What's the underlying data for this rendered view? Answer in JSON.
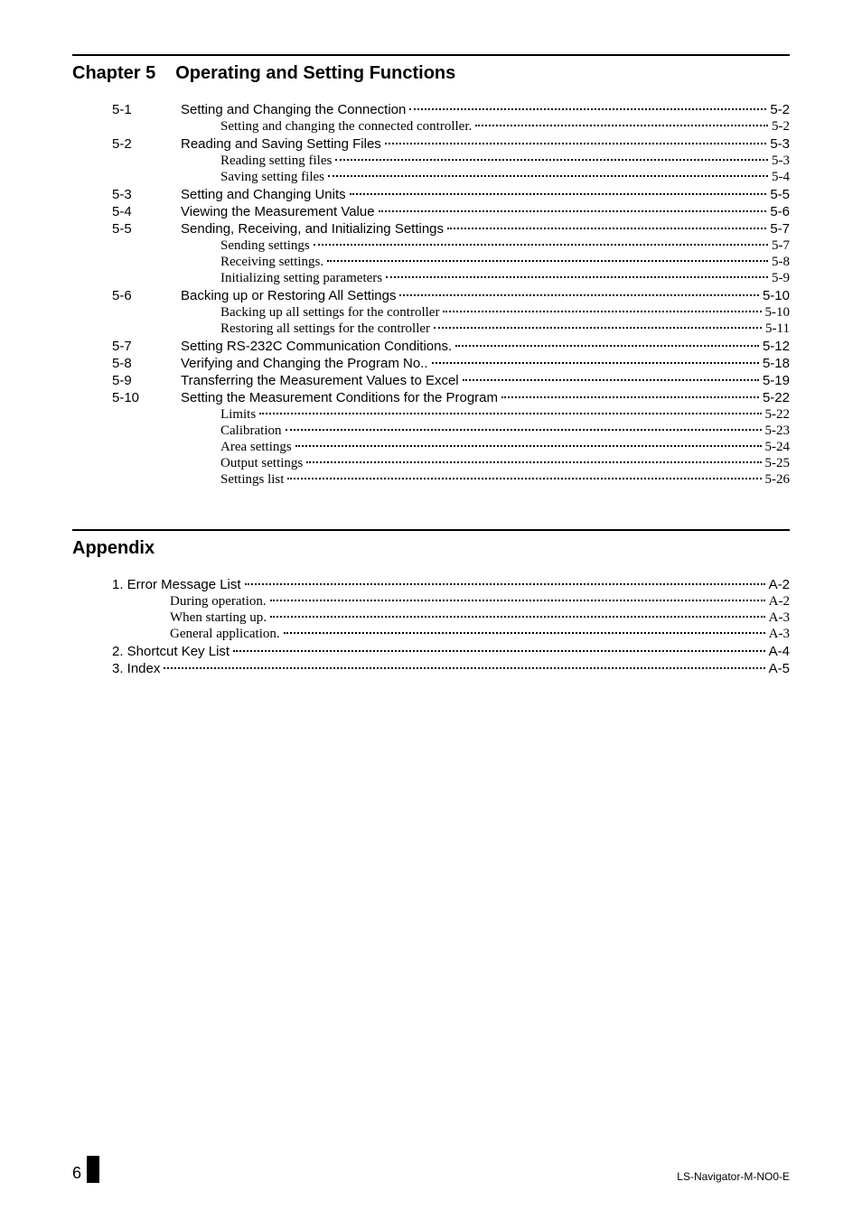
{
  "chapter": {
    "label": "Chapter 5",
    "title": "Operating and Setting Functions",
    "entries": [
      {
        "num": "5-1",
        "text": "Setting and Changing the Connection",
        "page": "5-2",
        "kind": "section"
      },
      {
        "num": "",
        "text": "Setting and changing the connected controller.",
        "page": "5-2",
        "kind": "sub"
      },
      {
        "num": "5-2",
        "text": "Reading and Saving Setting Files",
        "page": "5-3",
        "kind": "section"
      },
      {
        "num": "",
        "text": "Reading setting files",
        "page": "5-3",
        "kind": "sub"
      },
      {
        "num": "",
        "text": "Saving setting files",
        "page": "5-4",
        "kind": "sub"
      },
      {
        "num": "5-3",
        "text": "Setting and Changing Units",
        "page": "5-5",
        "kind": "section"
      },
      {
        "num": "5-4",
        "text": "Viewing the Measurement Value",
        "page": "5-6",
        "kind": "section"
      },
      {
        "num": "5-5",
        "text": "Sending, Receiving, and Initializing Settings",
        "page": "5-7",
        "kind": "section"
      },
      {
        "num": "",
        "text": "Sending settings",
        "page": "5-7",
        "kind": "sub"
      },
      {
        "num": "",
        "text": "Receiving settings.",
        "page": "5-8",
        "kind": "sub"
      },
      {
        "num": "",
        "text": "Initializing setting parameters",
        "page": "5-9",
        "kind": "sub"
      },
      {
        "num": "5-6",
        "text": "Backing up or Restoring All Settings",
        "page": "5-10",
        "kind": "section"
      },
      {
        "num": "",
        "text": "Backing up all settings for the controller",
        "page": "5-10",
        "kind": "sub"
      },
      {
        "num": "",
        "text": "Restoring all settings for the controller",
        "page": "5-11",
        "kind": "sub"
      },
      {
        "num": "5-7",
        "text": "Setting RS-232C Communication Conditions.",
        "page": "5-12",
        "kind": "section"
      },
      {
        "num": "5-8",
        "text": "Verifying and Changing the Program No..",
        "page": "5-18",
        "kind": "section"
      },
      {
        "num": "5-9",
        "text": "Transferring the Measurement Values to Excel",
        "page": "5-19",
        "kind": "section"
      },
      {
        "num": "5-10",
        "text": "Setting the Measurement Conditions for the Program",
        "page": "5-22",
        "kind": "section"
      },
      {
        "num": "",
        "text": "Limits",
        "page": "5-22",
        "kind": "sub"
      },
      {
        "num": "",
        "text": "Calibration",
        "page": "5-23",
        "kind": "sub"
      },
      {
        "num": "",
        "text": "Area settings",
        "page": "5-24",
        "kind": "sub"
      },
      {
        "num": "",
        "text": "Output settings",
        "page": "5-25",
        "kind": "sub"
      },
      {
        "num": "",
        "text": "Settings list",
        "page": "5-26",
        "kind": "sub"
      }
    ]
  },
  "appendix": {
    "title": "Appendix",
    "entries": [
      {
        "text": "1. Error Message List",
        "page": "A-2",
        "kind": "top"
      },
      {
        "text": "During operation.",
        "page": "A-2",
        "kind": "sub"
      },
      {
        "text": "When starting up.",
        "page": "A-3",
        "kind": "sub"
      },
      {
        "text": "General application.",
        "page": "A-3",
        "kind": "sub"
      },
      {
        "text": "2. Shortcut Key List",
        "page": "A-4",
        "kind": "top"
      },
      {
        "text": "3. Index",
        "page": "A-5",
        "kind": "top"
      }
    ]
  },
  "footer": {
    "page_number": "6",
    "doc_code": "LS-Navigator-M-NO0-E"
  }
}
